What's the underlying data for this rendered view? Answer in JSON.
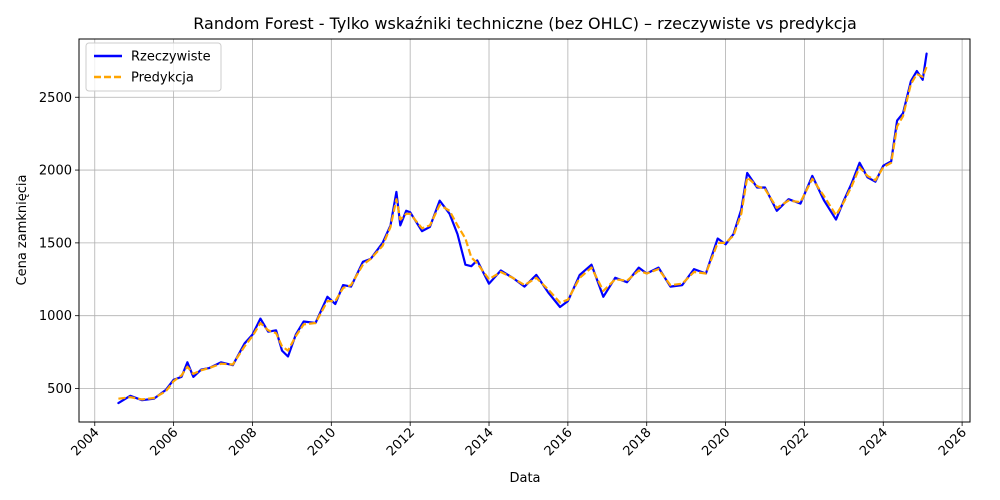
{
  "chart_data": {
    "type": "line",
    "title": "Random Forest - Tylko wskaźniki techniczne (bez OHLC) – rzeczywiste vs predykcja",
    "xlabel": "Data",
    "ylabel": "Cena zamknięcia",
    "xlim": [
      2003.6,
      2026.2
    ],
    "ylim": [
      270,
      2900
    ],
    "x_ticks": [
      2004,
      2006,
      2008,
      2010,
      2012,
      2014,
      2016,
      2018,
      2020,
      2022,
      2024,
      2026
    ],
    "x_tick_labels": [
      "2004",
      "2006",
      "2008",
      "2010",
      "2012",
      "2014",
      "2016",
      "2018",
      "2020",
      "2022",
      "2024",
      "2026"
    ],
    "y_ticks": [
      500,
      1000,
      1500,
      2000,
      2500
    ],
    "y_tick_labels": [
      "500",
      "1000",
      "1500",
      "2000",
      "2500"
    ],
    "grid": true,
    "legend_position": "top-left",
    "series": [
      {
        "name": "Rzeczywiste",
        "color": "#0000ff",
        "style": "solid",
        "x": [
          2004.6,
          2004.9,
          2005.2,
          2005.5,
          2005.8,
          2006.0,
          2006.2,
          2006.35,
          2006.5,
          2006.7,
          2006.9,
          2007.2,
          2007.5,
          2007.8,
          2008.0,
          2008.2,
          2008.4,
          2008.6,
          2008.75,
          2008.9,
          2009.1,
          2009.3,
          2009.6,
          2009.9,
          2010.1,
          2010.3,
          2010.5,
          2010.8,
          2011.0,
          2011.3,
          2011.5,
          2011.65,
          2011.75,
          2011.9,
          2012.0,
          2012.3,
          2012.5,
          2012.75,
          2013.0,
          2013.2,
          2013.4,
          2013.55,
          2013.7,
          2014.0,
          2014.3,
          2014.6,
          2014.9,
          2015.2,
          2015.5,
          2015.8,
          2016.0,
          2016.3,
          2016.6,
          2016.9,
          2017.2,
          2017.5,
          2017.8,
          2018.0,
          2018.3,
          2018.6,
          2018.9,
          2019.2,
          2019.5,
          2019.8,
          2020.0,
          2020.2,
          2020.4,
          2020.55,
          2020.8,
          2021.0,
          2021.3,
          2021.6,
          2021.9,
          2022.2,
          2022.5,
          2022.8,
          2023.0,
          2023.2,
          2023.4,
          2023.6,
          2023.8,
          2024.0,
          2024.2,
          2024.35,
          2024.5,
          2024.7,
          2024.85,
          2025.0,
          2025.1
        ],
        "y": [
          400,
          450,
          420,
          430,
          490,
          560,
          580,
          680,
          580,
          630,
          640,
          680,
          660,
          810,
          870,
          980,
          890,
          900,
          760,
          720,
          870,
          960,
          950,
          1130,
          1080,
          1210,
          1200,
          1370,
          1390,
          1500,
          1620,
          1850,
          1620,
          1720,
          1710,
          1580,
          1610,
          1790,
          1700,
          1560,
          1350,
          1340,
          1380,
          1220,
          1310,
          1260,
          1200,
          1280,
          1160,
          1060,
          1100,
          1280,
          1350,
          1130,
          1260,
          1230,
          1330,
          1290,
          1330,
          1200,
          1210,
          1320,
          1290,
          1530,
          1490,
          1560,
          1730,
          1980,
          1880,
          1880,
          1720,
          1800,
          1770,
          1960,
          1790,
          1660,
          1790,
          1910,
          2050,
          1950,
          1920,
          2030,
          2060,
          2340,
          2390,
          2610,
          2680,
          2620,
          2800
        ]
      },
      {
        "name": "Predykcja",
        "color": "#ffa500",
        "style": "dashed",
        "x": [
          2004.6,
          2004.9,
          2005.2,
          2005.5,
          2005.8,
          2006.0,
          2006.2,
          2006.35,
          2006.5,
          2006.7,
          2006.9,
          2007.2,
          2007.5,
          2007.8,
          2008.0,
          2008.2,
          2008.4,
          2008.6,
          2008.75,
          2008.9,
          2009.1,
          2009.3,
          2009.6,
          2009.9,
          2010.1,
          2010.3,
          2010.5,
          2010.8,
          2011.0,
          2011.3,
          2011.5,
          2011.65,
          2011.75,
          2011.9,
          2012.0,
          2012.3,
          2012.5,
          2012.75,
          2013.0,
          2013.2,
          2013.4,
          2013.55,
          2013.7,
          2014.0,
          2014.3,
          2014.6,
          2014.9,
          2015.2,
          2015.5,
          2015.8,
          2016.0,
          2016.3,
          2016.6,
          2016.9,
          2017.2,
          2017.5,
          2017.8,
          2018.0,
          2018.3,
          2018.6,
          2018.9,
          2019.2,
          2019.5,
          2019.8,
          2020.0,
          2020.2,
          2020.4,
          2020.55,
          2020.8,
          2021.0,
          2021.3,
          2021.6,
          2021.9,
          2022.2,
          2022.5,
          2022.8,
          2023.0,
          2023.2,
          2023.4,
          2023.6,
          2023.8,
          2024.0,
          2024.2,
          2024.35,
          2024.5,
          2024.7,
          2024.85,
          2025.0,
          2025.1
        ],
        "y": [
          430,
          440,
          425,
          435,
          480,
          550,
          590,
          650,
          600,
          625,
          640,
          670,
          665,
          790,
          860,
          950,
          900,
          880,
          790,
          760,
          860,
          940,
          950,
          1100,
          1100,
          1190,
          1210,
          1350,
          1390,
          1480,
          1610,
          1800,
          1660,
          1700,
          1700,
          1600,
          1620,
          1760,
          1720,
          1620,
          1530,
          1400,
          1360,
          1250,
          1300,
          1260,
          1210,
          1260,
          1180,
          1090,
          1110,
          1260,
          1330,
          1170,
          1250,
          1240,
          1310,
          1290,
          1320,
          1210,
          1220,
          1300,
          1290,
          1500,
          1500,
          1550,
          1700,
          1950,
          1890,
          1870,
          1740,
          1790,
          1780,
          1940,
          1820,
          1690,
          1780,
          1890,
          2020,
          1960,
          1930,
          2020,
          2050,
          2300,
          2370,
          2590,
          2660,
          2640,
          2710
        ]
      }
    ]
  }
}
